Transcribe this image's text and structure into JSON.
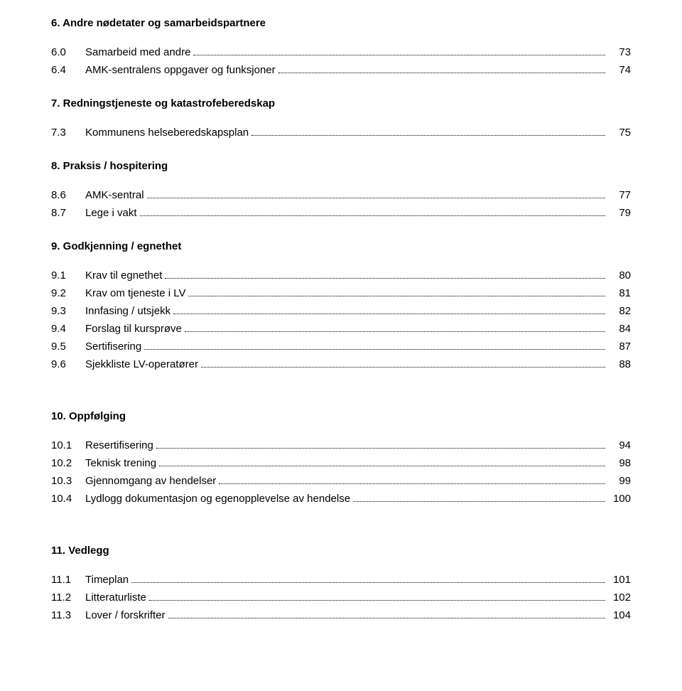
{
  "sections": [
    {
      "heading": "6. Andre nødetater og samarbeidspartnere",
      "rows": [
        {
          "num": "6.0",
          "label": "Samarbeid med andre",
          "page": "73"
        },
        {
          "num": "6.4",
          "label": "AMK-sentralens oppgaver og funksjoner",
          "page": "74"
        }
      ]
    },
    {
      "heading": "7. Redningstjeneste og katastrofeberedskap",
      "rows": [
        {
          "num": "7.3",
          "label": "Kommunens helseberedskapsplan",
          "page": "75"
        }
      ]
    },
    {
      "heading": "8. Praksis / hospitering",
      "rows": [
        {
          "num": "8.6",
          "label": "AMK-sentral",
          "page": "77"
        },
        {
          "num": "8.7",
          "label": "Lege i vakt",
          "page": "79"
        }
      ]
    },
    {
      "heading": "9. Godkjenning / egnethet",
      "rows": [
        {
          "num": "9.1",
          "label": "Krav til egnethet",
          "page": "80"
        },
        {
          "num": "9.2",
          "label": "Krav om tjeneste i LV",
          "page": "81"
        },
        {
          "num": "9.3",
          "label": "Innfasing / utsjekk",
          "page": "82"
        },
        {
          "num": "9.4",
          "label": "Forslag til kursprøve",
          "page": "84"
        },
        {
          "num": "9.5",
          "label": "Sertifisering",
          "page": "87"
        },
        {
          "num": "9.6",
          "label": "Sjekkliste LV-operatører",
          "page": "88"
        }
      ]
    },
    {
      "heading": "10. Oppfølging",
      "rows": [
        {
          "num": "10.1",
          "label": "Resertifisering",
          "page": "94"
        },
        {
          "num": "10.2",
          "label": "Teknisk trening",
          "page": "98"
        },
        {
          "num": "10.3",
          "label": "Gjennomgang av hendelser",
          "page": "99"
        },
        {
          "num": "10.4",
          "label": "Lydlogg dokumentasjon og egenopplevelse av hendelse",
          "page": "100"
        }
      ]
    },
    {
      "heading": "11. Vedlegg",
      "rows": [
        {
          "num": "11.1",
          "label": "Timeplan",
          "page": "101"
        },
        {
          "num": "11.2",
          "label": "Litteraturliste",
          "page": "102"
        },
        {
          "num": "11.3",
          "label": "Lover / forskrifter",
          "page": "104"
        }
      ]
    }
  ]
}
